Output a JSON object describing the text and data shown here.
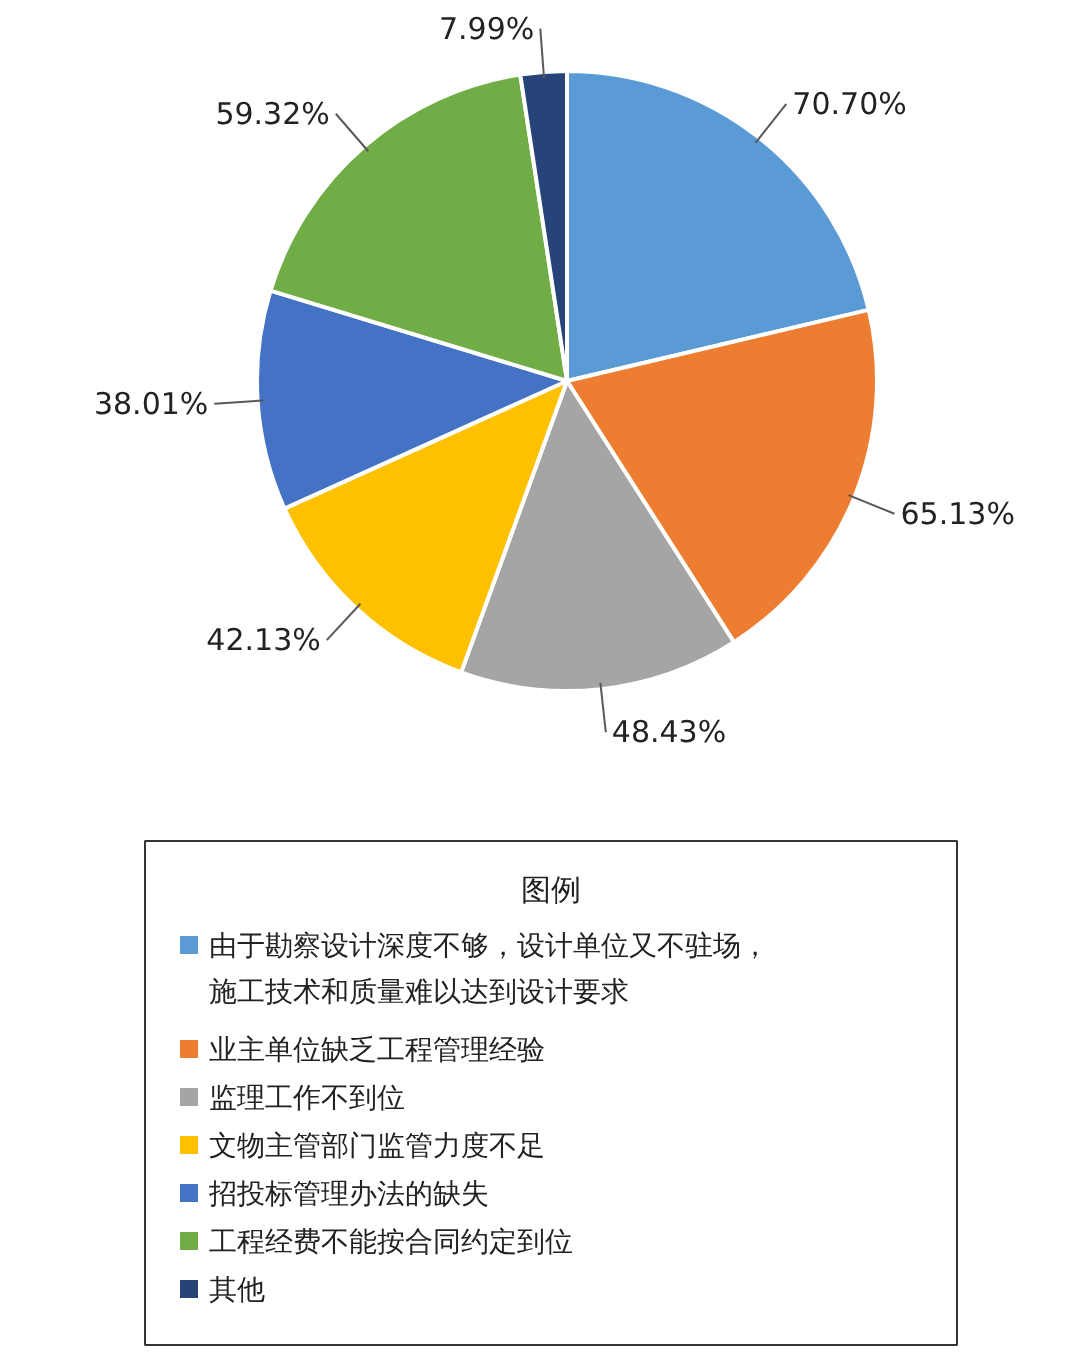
{
  "chart_data": {
    "type": "pie",
    "legend_title": "图例",
    "legend": "bottom",
    "categories": [
      "由于勘察设计深度不够，设计单位又不驻场，施工技术和质量难以达到设计要求",
      "业主单位缺乏工程管理经验",
      "监理工作不到位",
      "文物主管部门监管力度不足",
      "招投标管理办法的缺失",
      "工程经费不能按合同约定到位",
      "其他"
    ],
    "values": [
      70.7,
      65.13,
      48.43,
      42.13,
      38.01,
      59.32,
      7.99
    ],
    "value_labels": [
      "70.70%",
      "65.13%",
      "48.43%",
      "42.13%",
      "38.01%",
      "59.32%",
      "7.99%"
    ],
    "colors": [
      "#5b9bd5",
      "#ed7d31",
      "#a5a5a5",
      "#ffc000",
      "#4472c4",
      "#70ad47",
      "#264478"
    ]
  }
}
